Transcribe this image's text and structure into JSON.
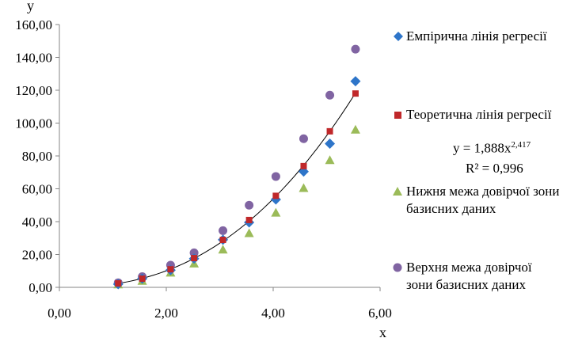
{
  "chart_data": {
    "type": "scatter",
    "xlabel": "x",
    "ylabel": "y",
    "xlim": [
      0,
      6
    ],
    "ylim": [
      0,
      160
    ],
    "x_ticks": [
      "0,00",
      "2,00",
      "4,00",
      "6,00"
    ],
    "y_ticks": [
      "0,00",
      "20,00",
      "40,00",
      "60,00",
      "80,00",
      "100,00",
      "120,00",
      "140,00",
      "160,00"
    ],
    "x": [
      1.1,
      1.55,
      2.08,
      2.52,
      3.06,
      3.55,
      4.05,
      4.57,
      5.06,
      5.54
    ],
    "series": [
      {
        "name": "Емпірична лінія регресії",
        "marker": "diamond",
        "color": "#2e75c9",
        "values": [
          1.9,
          5.3,
          10.5,
          17.5,
          29.0,
          39.5,
          53.5,
          70.5,
          87.5,
          125.5
        ]
      },
      {
        "name": "Теоретична лінія регресії",
        "marker": "square",
        "color": "#c0282a",
        "values": [
          2.4,
          5.3,
          11.0,
          17.8,
          28.9,
          41.0,
          55.7,
          73.8,
          95.0,
          118.0
        ]
      },
      {
        "name": "Нижня межа довірчої зони базисних даних",
        "marker": "triangle",
        "color": "#9bbb59",
        "values": [
          1.8,
          4.0,
          9.0,
          14.5,
          23.0,
          33.0,
          45.5,
          60.5,
          77.5,
          96.0
        ]
      },
      {
        "name": "Верхня межа довірчої зони базисних даних",
        "marker": "circle",
        "color": "#8064a2",
        "values": [
          2.8,
          6.5,
          13.5,
          21.0,
          34.5,
          50.0,
          67.5,
          90.5,
          117.0,
          145.0
        ]
      }
    ],
    "trendline": {
      "type": "power",
      "a": 1.888,
      "b": 2.417,
      "equation_prefix": "y = 1,888x",
      "equation_exponent": "2,417",
      "r2_label": "R² = 0,996"
    },
    "grid": false,
    "legend_position": "right"
  }
}
